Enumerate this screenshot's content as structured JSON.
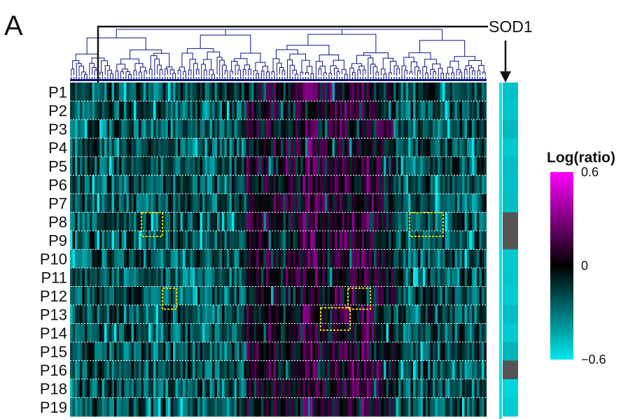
{
  "panel_label": "A",
  "chart_data": {
    "type": "heatmap",
    "rows": [
      "P1",
      "P2",
      "P3",
      "P4",
      "P5",
      "P6",
      "P7",
      "P8",
      "P9",
      "P10",
      "P11",
      "P12",
      "P13",
      "P14",
      "P15",
      "P16",
      "P18",
      "P19"
    ],
    "highlight_gene": "SOD1",
    "legend": {
      "title": "Log(ratio)",
      "ticks": [
        "0.6",
        "0",
        "−0.6"
      ],
      "tick_values": [
        0.6,
        0,
        -0.6
      ],
      "range": [
        -0.6,
        0.6
      ],
      "colors": {
        "low": "#00e8ee",
        "mid": "#000000",
        "high": "#ff00ff"
      },
      "placement": "right"
    },
    "dendrogram": {
      "position": "top",
      "color": "#0d1580"
    },
    "row_separators": "dotted-white",
    "highlight_boxes": [
      {
        "row": "P8",
        "color": "#e8d000"
      },
      {
        "row": "P8",
        "color": "#e8d000"
      },
      {
        "row": "P12",
        "color": "#e8d000"
      },
      {
        "row": "P12",
        "color": "#e8d000"
      },
      {
        "row": "P13",
        "color": "#e8d000"
      }
    ]
  }
}
